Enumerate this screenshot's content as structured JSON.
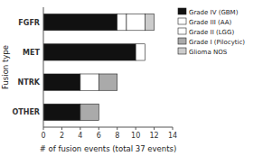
{
  "chart_data": {
    "type": "bar",
    "orientation": "horizontal",
    "stacked": true,
    "categories": [
      "FGFR",
      "MET",
      "NTRK",
      "OTHER"
    ],
    "series": [
      {
        "name": "Grade IV (GBM)",
        "color": "#111111",
        "values": [
          8,
          10,
          4,
          4
        ]
      },
      {
        "name": "Grade III (AA)",
        "color": "#ffffff",
        "values": [
          1,
          1,
          0,
          0
        ]
      },
      {
        "name": "Grade II (LGG)",
        "color": "#ffffff",
        "values": [
          2,
          0,
          2,
          0
        ]
      },
      {
        "name": "Grade I (Pilocytic)",
        "color": "#aaaaaa",
        "values": [
          0,
          0,
          2,
          2
        ]
      },
      {
        "name": "Glioma NOS",
        "color": "#cccccc",
        "values": [
          1,
          0,
          0,
          0
        ]
      }
    ],
    "xlabel": "# of fusion events (total 37 events)",
    "ylabel": "Fusion type",
    "xlim": [
      0,
      14
    ],
    "xticks": [
      0,
      2,
      4,
      6,
      8,
      10,
      12,
      14
    ],
    "legend": "upper right"
  }
}
